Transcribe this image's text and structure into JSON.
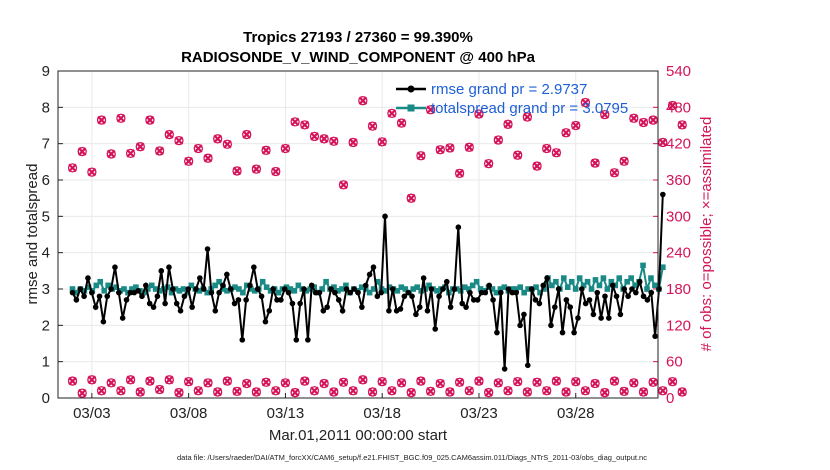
{
  "chart_data": {
    "type": "line",
    "title": "Tropics 27193 / 27360 = 99.390%",
    "subtitle": "RADIOSONDE_V_WIND_COMPONENT @ 400 hPa",
    "xlabel": "Mar.01,2011 00:00:00 start",
    "ylabel": "rmse and totalspread",
    "ylabel_right": "# of obs: o=possible; ×=assimilated",
    "x_ticks": [
      "03/03",
      "03/08",
      "03/13",
      "03/18",
      "03/23",
      "03/28"
    ],
    "x_tick_days": [
      2,
      7,
      12,
      17,
      22,
      27
    ],
    "xlim": [
      0.25,
      31.25
    ],
    "ylim": [
      0,
      9
    ],
    "y_ticks": [
      "0",
      "1",
      "2",
      "3",
      "4",
      "5",
      "6",
      "7",
      "8",
      "9"
    ],
    "ylim_right": [
      0,
      540
    ],
    "y_ticks_right": [
      "0",
      "60",
      "120",
      "180",
      "240",
      "300",
      "360",
      "420",
      "480",
      "540"
    ],
    "grid": true,
    "legend_position": "top-right",
    "footer": "data file: /Users/raeder/DAI/ATM_forcXX/CAM6_setup/f.e21.FHIST_BGC.f09_025.CAM6assim.011/Diags_NTrS_2011-03/obs_diag_output.nc",
    "colors": {
      "rmse": "#000000",
      "spread": "#1a8a86",
      "obs": "#d4145a",
      "legend_text": "#1f5fd6"
    },
    "series": [
      {
        "name": "rmse grand pr = 2.9737",
        "axis": "left",
        "marker": "filled-circle",
        "values": [
          2.9,
          2.7,
          3.0,
          2.8,
          3.3,
          2.9,
          2.5,
          2.8,
          2.1,
          2.8,
          3.0,
          3.6,
          2.9,
          2.2,
          2.7,
          2.9,
          2.9,
          2.95,
          2.8,
          3.1,
          2.6,
          2.5,
          2.8,
          3.5,
          2.6,
          3.6,
          3.0,
          2.6,
          2.4,
          2.8,
          3.0,
          2.5,
          3.0,
          3.3,
          3.0,
          4.1,
          2.9,
          2.4,
          2.9,
          3.1,
          3.4,
          3.0,
          2.6,
          2.7,
          1.6,
          2.7,
          3.1,
          3.6,
          3.0,
          2.8,
          2.1,
          2.4,
          3.0,
          2.7,
          2.7,
          3.0,
          2.9,
          2.6,
          1.6,
          2.6,
          3.0,
          1.6,
          3.1,
          2.9,
          2.9,
          2.4,
          2.5,
          3.0,
          2.9,
          2.7,
          2.4,
          3.0,
          2.9,
          3.0,
          2.9,
          2.5,
          3.1,
          3.4,
          3.6,
          2.8,
          2.9,
          5.0,
          2.4,
          3.0,
          2.4,
          2.45,
          2.8,
          2.9,
          2.8,
          2.3,
          2.5,
          3.3,
          2.4,
          3.0,
          1.9,
          2.8,
          3.0,
          3.2,
          2.5,
          3.0,
          4.7,
          2.6,
          2.5,
          2.9,
          2.7,
          2.7,
          2.9,
          2.9,
          3.1,
          2.7,
          1.8,
          2.9,
          0.8,
          3.0,
          2.9,
          2.9,
          2.0,
          2.3,
          0.9,
          3.0,
          2.7,
          2.6,
          3.1,
          3.3,
          2.0,
          2.5,
          3.0,
          1.8,
          2.7,
          2.5,
          1.8,
          2.2,
          3.0,
          2.6,
          2.7,
          2.3,
          2.9,
          2.2,
          2.8,
          2.2,
          3.1,
          2.8,
          2.3,
          3.0,
          2.8,
          3.0,
          2.9,
          3.2,
          2.8,
          2.7,
          2.9,
          1.7,
          3.0,
          5.6
        ]
      },
      {
        "name": "totalspread grand pr = 3.0795",
        "axis": "left",
        "marker": "filled-square",
        "values": [
          3.0,
          2.9,
          3.0,
          2.95,
          3.05,
          2.95,
          3.1,
          3.2,
          2.95,
          3.1,
          3.0,
          3.05,
          2.95,
          3.0,
          2.9,
          3.0,
          3.05,
          2.95,
          2.9,
          3.0,
          3.1,
          3.0,
          2.95,
          3.0,
          3.05,
          2.9,
          3.0,
          2.95,
          3.0,
          2.9,
          3.1,
          3.0,
          2.95,
          3.0,
          2.9,
          3.0,
          3.1,
          3.2,
          3.0,
          2.95,
          3.0,
          3.05,
          3.0,
          2.9,
          3.1,
          3.0,
          2.95,
          3.0,
          3.2,
          3.05,
          2.95,
          3.0,
          2.9,
          3.0,
          3.05,
          3.0,
          2.95,
          3.1,
          3.0,
          2.95,
          3.0,
          3.05,
          2.9,
          3.0,
          3.2,
          3.0,
          3.05,
          2.95,
          3.0,
          3.1,
          2.9,
          3.0,
          2.95,
          3.05,
          3.0,
          2.9,
          3.0,
          3.2,
          3.0,
          2.95,
          3.05,
          3.0,
          2.95,
          3.05,
          3.0,
          2.9,
          3.0,
          3.05,
          2.95,
          3.0,
          3.1,
          3.0,
          2.95,
          3.0,
          3.05,
          2.9,
          3.0,
          3.0,
          2.95,
          3.05,
          3.0,
          3.1,
          3.2,
          3.0,
          2.95,
          3.05,
          3.0,
          2.9,
          3.0,
          3.05,
          2.95,
          3.0,
          3.0,
          3.05,
          2.9,
          3.0,
          3.0,
          3.05,
          2.9,
          3.0,
          3.3,
          3.1,
          3.2,
          3.0,
          3.3,
          3.05,
          3.2,
          3.0,
          3.3,
          3.1,
          3.2,
          3.0,
          3.25,
          3.1,
          3.3,
          3.0,
          3.2,
          3.1,
          3.3,
          3.0,
          3.2,
          3.3,
          3.1,
          3.2,
          3.65,
          3.0,
          3.3,
          3.1,
          3.0,
          3.6
        ]
      },
      {
        "name": "obs possible (00Z)",
        "axis": "right",
        "marker": "circle",
        "values": [
          380,
          407,
          373,
          459,
          403,
          462,
          404,
          415,
          459,
          408,
          435,
          425,
          391,
          412,
          396,
          428,
          419,
          375,
          435,
          378,
          409,
          374,
          412,
          456,
          451,
          432,
          428,
          424,
          352,
          422,
          491,
          449,
          423,
          470,
          454,
          330,
          400,
          476,
          410,
          413,
          371,
          414,
          469,
          387,
          426,
          452,
          401,
          464,
          383,
          412,
          405,
          438,
          450,
          488,
          388,
          468,
          372,
          391,
          462,
          455,
          459,
          422,
          483,
          451
        ]
      },
      {
        "name": "obs possible (12Z)",
        "axis": "right",
        "marker": "circle",
        "values": [
          28,
          8,
          30,
          12,
          25,
          12,
          30,
          10,
          28,
          14,
          30,
          9,
          27,
          12,
          25,
          10,
          28,
          11,
          24,
          10,
          26,
          12,
          25,
          9,
          28,
          12,
          24,
          10,
          26,
          12,
          30,
          10,
          27,
          12,
          25,
          9,
          28,
          11,
          24,
          10,
          26,
          12,
          28,
          9,
          25,
          12,
          27,
          10,
          26,
          12,
          28,
          10,
          27,
          12,
          24,
          9,
          28,
          11,
          25,
          10,
          26,
          12,
          27,
          10
        ]
      }
    ]
  }
}
